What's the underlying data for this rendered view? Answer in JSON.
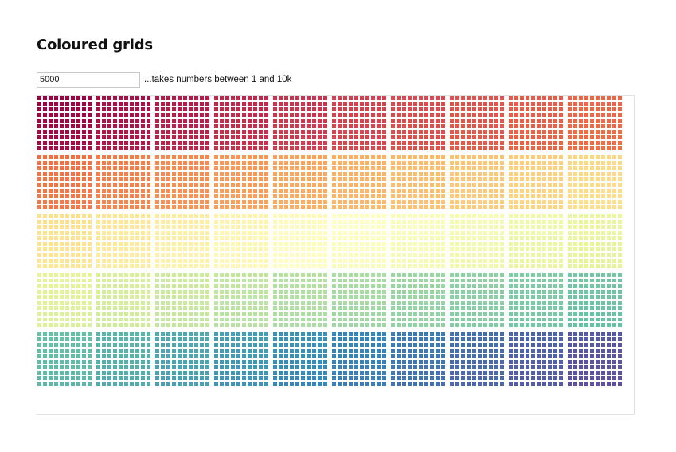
{
  "page": {
    "title": "Coloured grids"
  },
  "controls": {
    "count_value": "5000",
    "hint": "...takes numbers between 1 and 10k"
  },
  "grid": {
    "total_cells": 5000,
    "cells_per_block": 100,
    "block_columns": 10,
    "block_rows": 5,
    "color_scale": "spectral",
    "palette": [
      "#9e0142",
      "#d53e4f",
      "#f46d43",
      "#fdae61",
      "#fee08b",
      "#ffffbf",
      "#e6f598",
      "#abdda4",
      "#66c2a5",
      "#3288bd",
      "#5e4fa2"
    ]
  }
}
